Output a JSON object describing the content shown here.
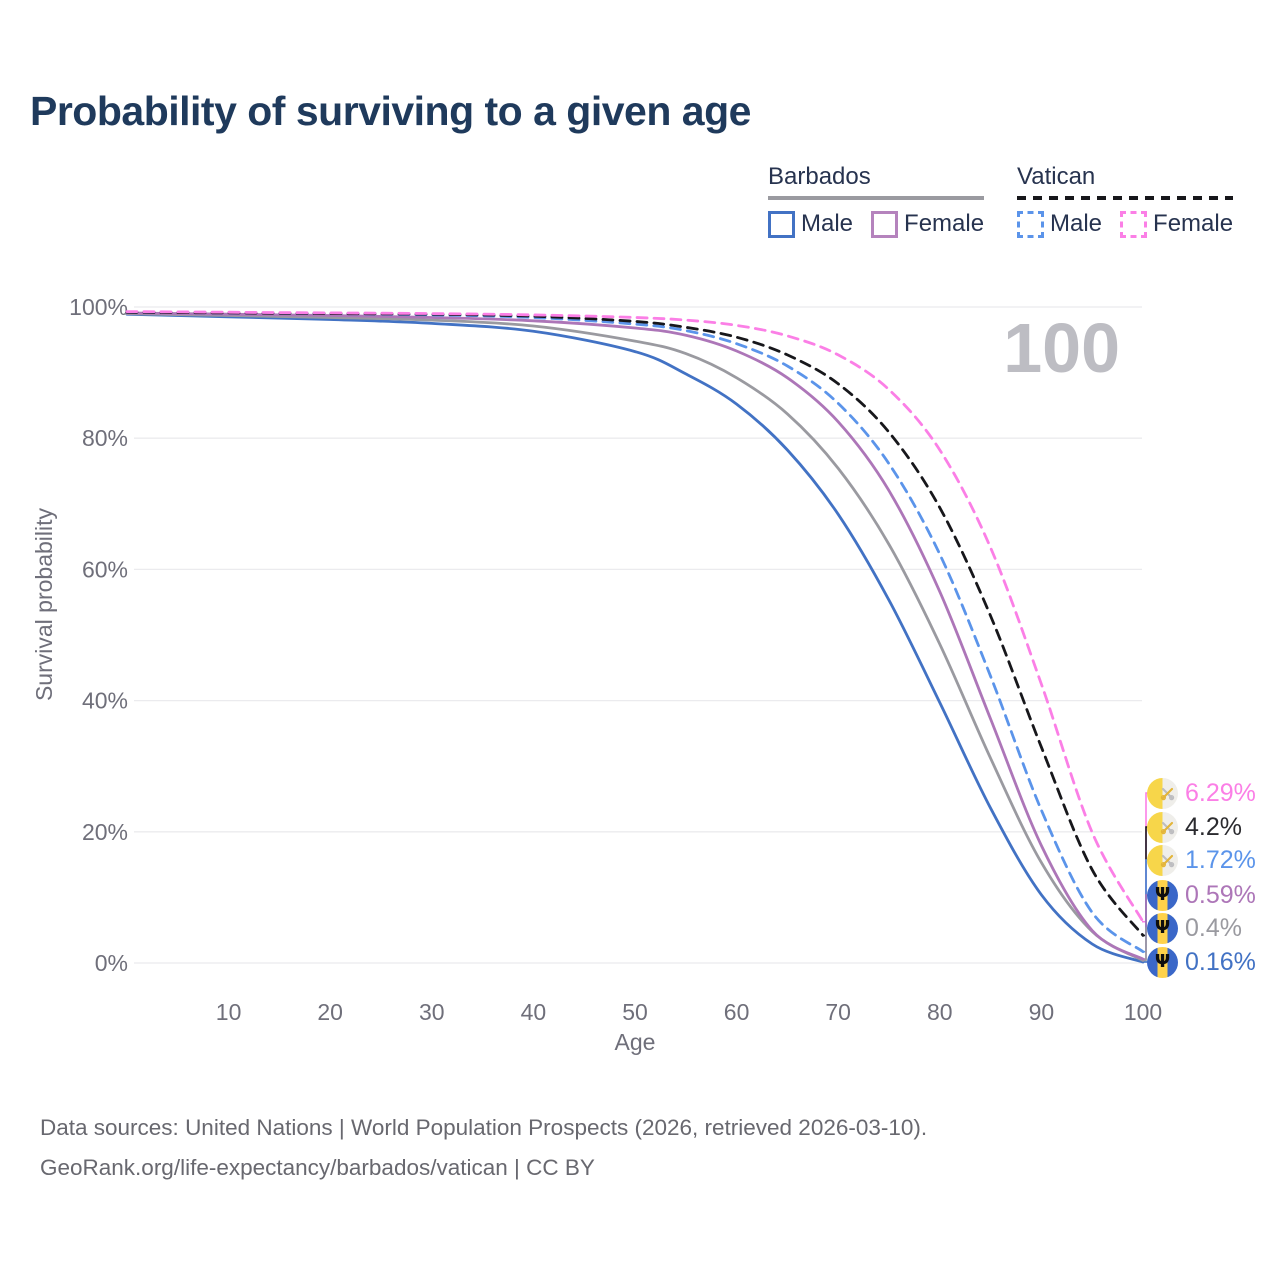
{
  "title": "Probability of surviving to a given age",
  "colors": {
    "grid": "#ebebee",
    "axis_text": "#6f6f7a",
    "watermark": "#bdbdc3",
    "title_text": "#1f3a5c",
    "legend_text": "#27334f"
  },
  "legend": {
    "groups": [
      {
        "label": "Barbados",
        "style": "solid",
        "color": "#9a9aa0",
        "items": [
          {
            "label": "Male",
            "color": "#4272c4",
            "dashed": false
          },
          {
            "label": "Female",
            "color": "#b583bd",
            "dashed": false
          }
        ]
      },
      {
        "label": "Vatican",
        "style": "dashed",
        "color": "#17171b",
        "items": [
          {
            "label": "Male",
            "color": "#5b94ea",
            "dashed": true
          },
          {
            "label": "Female",
            "color": "#fb7fe6",
            "dashed": true
          }
        ]
      }
    ]
  },
  "chart_data": {
    "type": "line",
    "title": "Probability of surviving to a given age",
    "xlabel": "Age",
    "ylabel": "Survival probability",
    "xlim": [
      0,
      100
    ],
    "ylim": [
      0,
      100
    ],
    "grid": "horizontal",
    "annotation": "100",
    "xticks": [
      10,
      20,
      30,
      40,
      50,
      60,
      70,
      80,
      90,
      100
    ],
    "yticks": [
      {
        "value": 0,
        "label": "0%"
      },
      {
        "value": 20,
        "label": "20%"
      },
      {
        "value": 40,
        "label": "40%"
      },
      {
        "value": 60,
        "label": "60%"
      },
      {
        "value": 80,
        "label": "80%"
      },
      {
        "value": 100,
        "label": "100%"
      }
    ],
    "x": [
      0,
      10,
      20,
      30,
      40,
      50,
      55,
      60,
      65,
      70,
      75,
      80,
      85,
      90,
      95,
      100
    ],
    "series": [
      {
        "id": "barbados-male",
        "name": "Barbados Male",
        "color": "#4272c4",
        "dash": false,
        "end_label": "0.16%",
        "values": [
          98.9,
          98.5,
          98.1,
          97.5,
          96.3,
          93.2,
          89.8,
          85.2,
          78.2,
          68.4,
          55.3,
          39.7,
          23.6,
          10.4,
          2.9,
          0.16
        ]
      },
      {
        "id": "barbados-total",
        "name": "Barbados Total",
        "color": "#9a9aa0",
        "dash": false,
        "end_label": "0.4%",
        "values": [
          99.0,
          98.7,
          98.4,
          98.0,
          97.1,
          94.8,
          92.9,
          89.2,
          83.7,
          75.4,
          63.8,
          48.6,
          31.2,
          15.3,
          4.8,
          0.4
        ]
      },
      {
        "id": "barbados-female",
        "name": "Barbados Female",
        "color": "#ad76b8",
        "dash": false,
        "end_label": "0.59%",
        "values": [
          99.1,
          98.9,
          98.7,
          98.4,
          97.9,
          96.8,
          95.7,
          93.3,
          89.2,
          82.5,
          72.0,
          56.6,
          37.2,
          17.9,
          4.95,
          0.59
        ]
      },
      {
        "id": "vatican-male",
        "name": "Vatican Male",
        "color": "#5b94ea",
        "dash": true,
        "end_label": "1.72%",
        "values": [
          99.2,
          99.1,
          99.0,
          98.8,
          98.4,
          97.4,
          96.4,
          94.4,
          91.0,
          85.3,
          76.1,
          62.3,
          43.7,
          23.3,
          7.7,
          1.72
        ]
      },
      {
        "id": "vatican-total",
        "name": "Vatican Total",
        "color": "#17171b",
        "dash": true,
        "end_label": "4.2%",
        "values": [
          99.2,
          99.1,
          99.0,
          98.9,
          98.6,
          97.8,
          96.9,
          95.4,
          92.7,
          88.3,
          80.9,
          69.4,
          52.9,
          32.9,
          14.2,
          4.2
        ]
      },
      {
        "id": "vatican-female",
        "name": "Vatican Female",
        "color": "#fb7fe6",
        "dash": true,
        "end_label": "6.29%",
        "values": [
          99.3,
          99.2,
          99.1,
          99.0,
          98.8,
          98.4,
          98.0,
          97.2,
          95.6,
          92.7,
          87.4,
          78.2,
          63.3,
          42.5,
          19.9,
          6.29
        ]
      }
    ]
  },
  "end_labels": [
    {
      "value": "6.29%",
      "color": "#fb7fe6",
      "series_id": "vatican-female",
      "flag": "vatican"
    },
    {
      "value": "4.2%",
      "color": "#2a2a2e",
      "series_id": "vatican-total",
      "flag": "vatican"
    },
    {
      "value": "1.72%",
      "color": "#5b94ea",
      "series_id": "vatican-male",
      "flag": "vatican"
    },
    {
      "value": "0.59%",
      "color": "#ad76b8",
      "series_id": "barbados-female",
      "flag": "barbados"
    },
    {
      "value": "0.4%",
      "color": "#9a9aa0",
      "series_id": "barbados-total",
      "flag": "barbados"
    },
    {
      "value": "0.16%",
      "color": "#4272c4",
      "series_id": "barbados-male",
      "flag": "barbados"
    }
  ],
  "footer": {
    "line1": "Data sources: United Nations | World Population Prospects (2026, retrieved 2026-03-10).",
    "line2": "GeoRank.org/life-expectancy/barbados/vatican | CC BY"
  }
}
